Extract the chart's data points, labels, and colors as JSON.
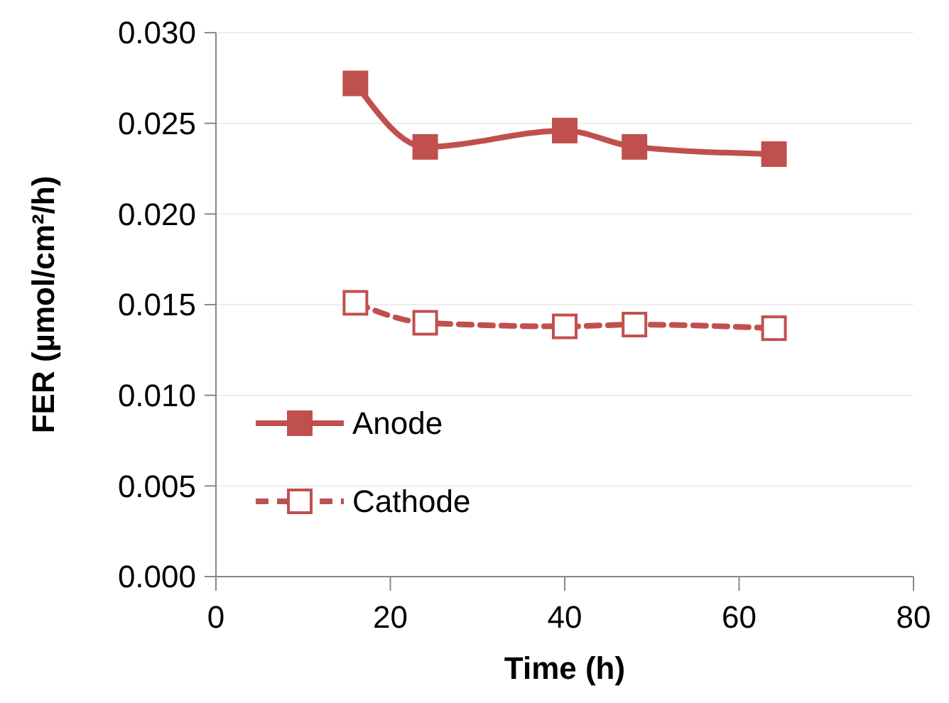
{
  "chart_data": {
    "type": "line",
    "xlabel": "Time (h)",
    "ylabel": "FER (µmol/cm²/h)",
    "xlim": [
      0,
      80
    ],
    "xticks": [
      0,
      20,
      40,
      60,
      80
    ],
    "ylim": [
      0,
      0.03
    ],
    "yticks": [
      {
        "value": 0,
        "label": "0.000"
      },
      {
        "value": 0.005,
        "label": "0.005"
      },
      {
        "value": 0.01,
        "label": "0.010"
      },
      {
        "value": 0.015,
        "label": "0.015"
      },
      {
        "value": 0.02,
        "label": "0.020"
      },
      {
        "value": 0.025,
        "label": "0.025"
      },
      {
        "value": 0.03,
        "label": "0.030"
      }
    ],
    "x": [
      16,
      24,
      40,
      48,
      64
    ],
    "series": [
      {
        "name": "Anode",
        "color": "#c0504d",
        "values": [
          0.0272,
          0.0237,
          0.0246,
          0.0237,
          0.0233
        ],
        "marker": "square",
        "line_style": "solid"
      },
      {
        "name": "Cathode",
        "color": "#c0504d",
        "values": [
          0.0151,
          0.014,
          0.0138,
          0.0139,
          0.0137
        ],
        "marker": "square",
        "line_style": "dashed"
      }
    ],
    "grid": "y",
    "legend": "left"
  }
}
